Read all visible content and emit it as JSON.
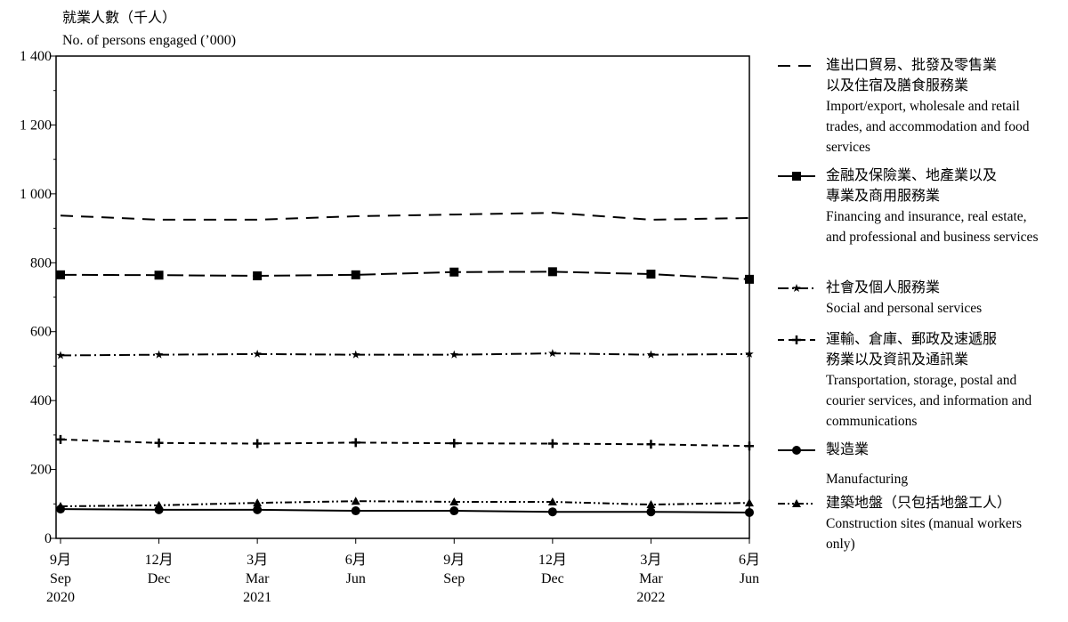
{
  "chart_data": {
    "type": "line",
    "y_title": "就業人數（千人）",
    "y_title_en": "No. of persons engaged (’000)",
    "categories": [
      "9月",
      "12月",
      "3月",
      "6月",
      "9月",
      "12月",
      "3月",
      "6月"
    ],
    "categories_en": [
      "Sep",
      "Dec",
      "Mar",
      "Jun",
      "Sep",
      "Dec",
      "Mar",
      "Jun"
    ],
    "years": [
      "2020",
      null,
      "2021",
      null,
      null,
      null,
      "2022",
      null
    ],
    "ylim": [
      0,
      1400
    ],
    "yticks": [
      0,
      200,
      400,
      600,
      800,
      {
        "value": 1000,
        "label": "1 000"
      },
      {
        "value": 1200,
        "label": "1 200"
      },
      {
        "value": 1400,
        "label": "1 400"
      }
    ],
    "yminorticks": [
      100,
      300,
      500,
      700,
      900,
      1100,
      1300
    ],
    "grid": false,
    "series": [
      {
        "name": "進出口貿易、批發及零售業以及住宿及膳食服務業",
        "name_en": "Import/export, wholesale and retail trades, and accommodation and food services",
        "color": "#000000",
        "line_style": "dashed",
        "marker": "none",
        "values": [
          937,
          925,
          925,
          935,
          940,
          945,
          925,
          930
        ]
      },
      {
        "name": "金融及保險業、地產業以及專業及商用服務業",
        "name_en": "Financing and insurance, real estate, and professional and business services",
        "color": "#000000",
        "line_style": "longdash",
        "marker": "square",
        "values": [
          765,
          764,
          762,
          765,
          773,
          774,
          767,
          752
        ]
      },
      {
        "name": "社會及個人服務業",
        "name_en": "Social and personal services",
        "color": "#000000",
        "line_style": "dashdot",
        "marker": "star",
        "values": [
          531,
          533,
          535,
          533,
          533,
          537,
          533,
          535
        ]
      },
      {
        "name": "運輸、倉庫、郵政及速遞服務業以及資訊及通訊業",
        "name_en": "Transportation, storage, postal and courier services, and information and communications",
        "color": "#000000",
        "line_style": "shortdash",
        "marker": "plus",
        "values": [
          287,
          277,
          275,
          278,
          276,
          275,
          273,
          268
        ]
      },
      {
        "name": "製造業",
        "name_en": "Manufacturing",
        "color": "#000000",
        "line_style": "solid",
        "marker": "circle",
        "values": [
          85,
          83,
          83,
          80,
          80,
          77,
          77,
          75
        ]
      },
      {
        "name": "建築地盤（只包括地盤工人）",
        "name_en": "Construction sites (manual workers only)",
        "color": "#000000",
        "line_style": "dashdotdot",
        "marker": "triangle",
        "values": [
          93,
          96,
          103,
          108,
          106,
          106,
          98,
          103
        ]
      }
    ]
  }
}
